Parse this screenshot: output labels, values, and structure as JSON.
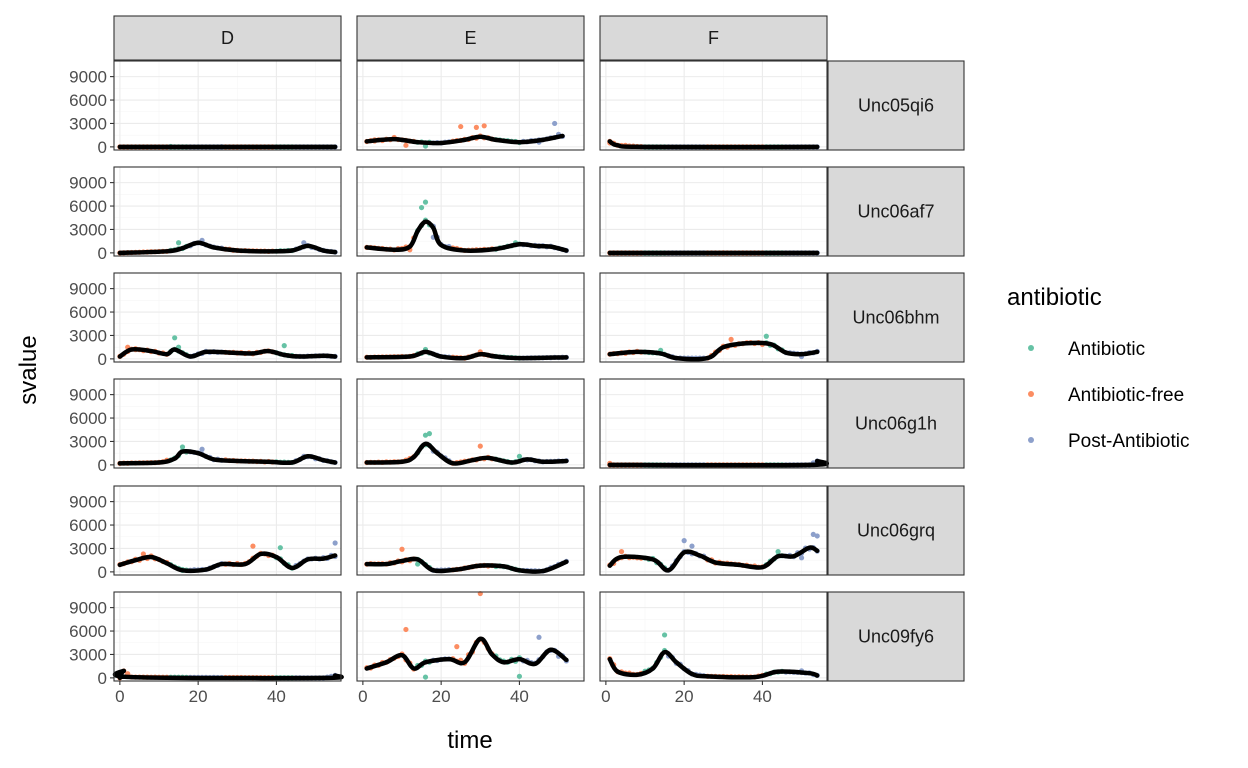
{
  "chart_data": {
    "type": "scatter",
    "facet_columns": [
      "D",
      "E",
      "F"
    ],
    "facet_rows": [
      "Unc05qi6",
      "Unc06af7",
      "Unc06bhm",
      "Unc06g1h",
      "Unc06grq",
      "Unc09fy6"
    ],
    "xlabel": "time",
    "ylabel": "svalue",
    "x_ticks": [
      "0",
      "20",
      "40"
    ],
    "y_ticks": [
      "0",
      "3000",
      "6000",
      "9000"
    ],
    "xlim": [
      -1.5,
      56.5
    ],
    "ylim": [
      -400,
      11000
    ],
    "grid": true,
    "legend": {
      "title": "antibiotic",
      "position": "right",
      "items": [
        {
          "label": "Antibiotic",
          "color": "#66c2a5"
        },
        {
          "label": "Antibiotic-free",
          "color": "#fc8d62"
        },
        {
          "label": "Post-Antibiotic",
          "color": "#8da0cb"
        }
      ]
    },
    "phases": {
      "D": [
        [
          0,
          12,
          "Antibiotic-free"
        ],
        [
          13,
          17,
          "Antibiotic"
        ],
        [
          18,
          26,
          "Post-Antibiotic"
        ],
        [
          27,
          39,
          "Antibiotic-free"
        ],
        [
          40,
          44,
          "Antibiotic"
        ],
        [
          45,
          55,
          "Post-Antibiotic"
        ]
      ],
      "E": [
        [
          1,
          13,
          "Antibiotic-free"
        ],
        [
          14,
          17,
          "Antibiotic"
        ],
        [
          18,
          22,
          "Post-Antibiotic"
        ],
        [
          23,
          33,
          "Antibiotic-free"
        ],
        [
          34,
          40,
          "Antibiotic"
        ],
        [
          41,
          52,
          "Post-Antibiotic"
        ]
      ],
      "F": [
        [
          1,
          9,
          "Antibiotic-free"
        ],
        [
          10,
          15,
          "Antibiotic"
        ],
        [
          16,
          25,
          "Post-Antibiotic"
        ],
        [
          26,
          40,
          "Antibiotic-free"
        ],
        [
          41,
          45,
          "Antibiotic"
        ],
        [
          46,
          54,
          "Post-Antibiotic"
        ]
      ]
    },
    "series": [
      {
        "row": "Unc05qi6",
        "col": "D",
        "smooth": [
          [
            0,
            0
          ],
          [
            55,
            0
          ]
        ],
        "points": [
          [
            13,
            50
          ],
          [
            26,
            20
          ]
        ]
      },
      {
        "row": "Unc05qi6",
        "col": "E",
        "smooth": [
          [
            1,
            700
          ],
          [
            8,
            1000
          ],
          [
            14,
            600
          ],
          [
            20,
            500
          ],
          [
            26,
            900
          ],
          [
            30,
            1300
          ],
          [
            34,
            900
          ],
          [
            40,
            600
          ],
          [
            46,
            900
          ],
          [
            51,
            1400
          ]
        ],
        "points": [
          [
            3,
            900
          ],
          [
            8,
            1200
          ],
          [
            11,
            200
          ],
          [
            16,
            100
          ],
          [
            25,
            2600
          ],
          [
            29,
            2500
          ],
          [
            31,
            2700
          ],
          [
            38,
            700
          ],
          [
            45,
            600
          ],
          [
            49,
            3000
          ],
          [
            50,
            1600
          ]
        ]
      },
      {
        "row": "Unc05qi6",
        "col": "F",
        "smooth": [
          [
            1,
            700
          ],
          [
            3,
            200
          ],
          [
            10,
            0
          ],
          [
            54,
            0
          ]
        ],
        "points": [
          [
            1,
            500
          ],
          [
            5,
            200
          ]
        ]
      },
      {
        "row": "Unc06af7",
        "col": "D",
        "smooth": [
          [
            0,
            0
          ],
          [
            12,
            200
          ],
          [
            16,
            600
          ],
          [
            20,
            1300
          ],
          [
            24,
            700
          ],
          [
            30,
            300
          ],
          [
            38,
            200
          ],
          [
            44,
            300
          ],
          [
            48,
            900
          ],
          [
            52,
            300
          ],
          [
            55,
            100
          ]
        ],
        "points": [
          [
            15,
            1300
          ],
          [
            19,
            1200
          ],
          [
            21,
            1600
          ],
          [
            47,
            1300
          ],
          [
            49,
            700
          ]
        ]
      },
      {
        "row": "Unc06af7",
        "col": "E",
        "smooth": [
          [
            1,
            700
          ],
          [
            8,
            400
          ],
          [
            12,
            800
          ],
          [
            14,
            2800
          ],
          [
            16,
            4000
          ],
          [
            18,
            3200
          ],
          [
            20,
            1000
          ],
          [
            26,
            300
          ],
          [
            34,
            500
          ],
          [
            40,
            1100
          ],
          [
            44,
            900
          ],
          [
            48,
            800
          ],
          [
            52,
            300
          ]
        ],
        "points": [
          [
            12,
            400
          ],
          [
            15,
            5800
          ],
          [
            16,
            6500
          ],
          [
            18,
            2000
          ],
          [
            39,
            1300
          ],
          [
            45,
            900
          ]
        ]
      },
      {
        "row": "Unc06af7",
        "col": "F",
        "smooth": [
          [
            1,
            0
          ],
          [
            54,
            0
          ]
        ],
        "points": [
          [
            30,
            0
          ]
        ]
      },
      {
        "row": "Unc06bhm",
        "col": "D",
        "smooth": [
          [
            0,
            300
          ],
          [
            3,
            1200
          ],
          [
            8,
            1000
          ],
          [
            12,
            600
          ],
          [
            14,
            1200
          ],
          [
            18,
            300
          ],
          [
            22,
            900
          ],
          [
            28,
            800
          ],
          [
            34,
            700
          ],
          [
            38,
            1000
          ],
          [
            42,
            500
          ],
          [
            46,
            300
          ],
          [
            52,
            400
          ],
          [
            55,
            300
          ]
        ],
        "points": [
          [
            2,
            1500
          ],
          [
            4,
            1300
          ],
          [
            14,
            2700
          ],
          [
            15,
            1500
          ],
          [
            42,
            1700
          ]
        ]
      },
      {
        "row": "Unc06bhm",
        "col": "E",
        "smooth": [
          [
            1,
            200
          ],
          [
            12,
            300
          ],
          [
            16,
            900
          ],
          [
            20,
            300
          ],
          [
            26,
            100
          ],
          [
            30,
            600
          ],
          [
            34,
            300
          ],
          [
            40,
            100
          ],
          [
            52,
            200
          ]
        ],
        "points": [
          [
            16,
            1200
          ],
          [
            30,
            900
          ]
        ]
      },
      {
        "row": "Unc06bhm",
        "col": "F",
        "smooth": [
          [
            1,
            600
          ],
          [
            8,
            900
          ],
          [
            14,
            700
          ],
          [
            18,
            100
          ],
          [
            26,
            100
          ],
          [
            30,
            1500
          ],
          [
            36,
            2000
          ],
          [
            42,
            1900
          ],
          [
            46,
            800
          ],
          [
            50,
            600
          ],
          [
            54,
            900
          ]
        ],
        "points": [
          [
            14,
            1100
          ],
          [
            32,
            2500
          ],
          [
            41,
            2900
          ],
          [
            50,
            300
          ]
        ]
      },
      {
        "row": "Unc06g1h",
        "col": "D",
        "smooth": [
          [
            0,
            200
          ],
          [
            10,
            300
          ],
          [
            14,
            800
          ],
          [
            16,
            1700
          ],
          [
            20,
            1500
          ],
          [
            24,
            700
          ],
          [
            30,
            500
          ],
          [
            38,
            400
          ],
          [
            44,
            300
          ],
          [
            48,
            1100
          ],
          [
            52,
            600
          ],
          [
            55,
            300
          ]
        ],
        "points": [
          [
            16,
            2300
          ],
          [
            21,
            2000
          ],
          [
            47,
            1100
          ]
        ]
      },
      {
        "row": "Unc06g1h",
        "col": "E",
        "smooth": [
          [
            1,
            300
          ],
          [
            10,
            400
          ],
          [
            13,
            1000
          ],
          [
            16,
            2700
          ],
          [
            19,
            1500
          ],
          [
            23,
            200
          ],
          [
            28,
            600
          ],
          [
            32,
            900
          ],
          [
            38,
            300
          ],
          [
            42,
            700
          ],
          [
            46,
            400
          ],
          [
            52,
            500
          ]
        ],
        "points": [
          [
            16,
            3800
          ],
          [
            17,
            4000
          ],
          [
            30,
            2400
          ],
          [
            40,
            1100
          ]
        ]
      },
      {
        "row": "Unc06g1h",
        "col": "F",
        "smooth": [
          [
            1,
            0
          ],
          [
            52,
            0
          ],
          [
            54,
            500
          ]
        ],
        "points": [
          [
            1,
            200
          ]
        ]
      },
      {
        "row": "Unc06grq",
        "col": "D",
        "smooth": [
          [
            0,
            900
          ],
          [
            4,
            1500
          ],
          [
            8,
            1900
          ],
          [
            12,
            1100
          ],
          [
            16,
            200
          ],
          [
            22,
            300
          ],
          [
            26,
            1000
          ],
          [
            32,
            1000
          ],
          [
            36,
            2300
          ],
          [
            40,
            1900
          ],
          [
            44,
            500
          ],
          [
            48,
            1600
          ],
          [
            52,
            1700
          ],
          [
            55,
            2100
          ]
        ],
        "points": [
          [
            6,
            2300
          ],
          [
            12,
            1200
          ],
          [
            16,
            300
          ],
          [
            34,
            3300
          ],
          [
            41,
            3100
          ],
          [
            55,
            3700
          ]
        ]
      },
      {
        "row": "Unc06grq",
        "col": "E",
        "smooth": [
          [
            1,
            1000
          ],
          [
            6,
            1000
          ],
          [
            10,
            1400
          ],
          [
            14,
            1600
          ],
          [
            18,
            200
          ],
          [
            24,
            300
          ],
          [
            30,
            800
          ],
          [
            36,
            700
          ],
          [
            40,
            200
          ],
          [
            46,
            100
          ],
          [
            52,
            1300
          ]
        ],
        "points": [
          [
            10,
            2900
          ],
          [
            14,
            1000
          ],
          [
            44,
            100
          ]
        ]
      },
      {
        "row": "Unc06grq",
        "col": "F",
        "smooth": [
          [
            1,
            800
          ],
          [
            4,
            1900
          ],
          [
            12,
            1600
          ],
          [
            16,
            200
          ],
          [
            20,
            2500
          ],
          [
            24,
            2100
          ],
          [
            28,
            1200
          ],
          [
            34,
            900
          ],
          [
            40,
            600
          ],
          [
            44,
            2000
          ],
          [
            48,
            2000
          ],
          [
            52,
            3100
          ],
          [
            54,
            2700
          ]
        ],
        "points": [
          [
            4,
            2600
          ],
          [
            20,
            4000
          ],
          [
            22,
            3300
          ],
          [
            44,
            2600
          ],
          [
            50,
            1800
          ],
          [
            53,
            4800
          ],
          [
            54,
            4600
          ]
        ]
      },
      {
        "row": "Unc09fy6",
        "col": "D",
        "smooth": [
          [
            0,
            0
          ],
          [
            1,
            900
          ],
          [
            3,
            100
          ],
          [
            52,
            0
          ],
          [
            55,
            300
          ]
        ],
        "points": [
          [
            2,
            400
          ]
        ]
      },
      {
        "row": "Unc09fy6",
        "col": "E",
        "smooth": [
          [
            1,
            1200
          ],
          [
            6,
            2000
          ],
          [
            10,
            2900
          ],
          [
            13,
            1200
          ],
          [
            16,
            2000
          ],
          [
            22,
            2400
          ],
          [
            26,
            2000
          ],
          [
            30,
            5000
          ],
          [
            33,
            3000
          ],
          [
            36,
            2000
          ],
          [
            40,
            2400
          ],
          [
            44,
            1800
          ],
          [
            48,
            3600
          ],
          [
            52,
            2300
          ]
        ],
        "points": [
          [
            11,
            6200
          ],
          [
            16,
            100
          ],
          [
            24,
            4000
          ],
          [
            30,
            10800
          ],
          [
            40,
            200
          ],
          [
            45,
            5200
          ]
        ]
      },
      {
        "row": "Unc09fy6",
        "col": "F",
        "smooth": [
          [
            1,
            2400
          ],
          [
            3,
            800
          ],
          [
            8,
            400
          ],
          [
            12,
            1200
          ],
          [
            15,
            3300
          ],
          [
            18,
            2000
          ],
          [
            22,
            500
          ],
          [
            26,
            200
          ],
          [
            38,
            100
          ],
          [
            44,
            800
          ],
          [
            52,
            600
          ],
          [
            54,
            300
          ]
        ],
        "points": [
          [
            15,
            5500
          ],
          [
            16,
            3000
          ],
          [
            50,
            900
          ]
        ]
      }
    ]
  }
}
